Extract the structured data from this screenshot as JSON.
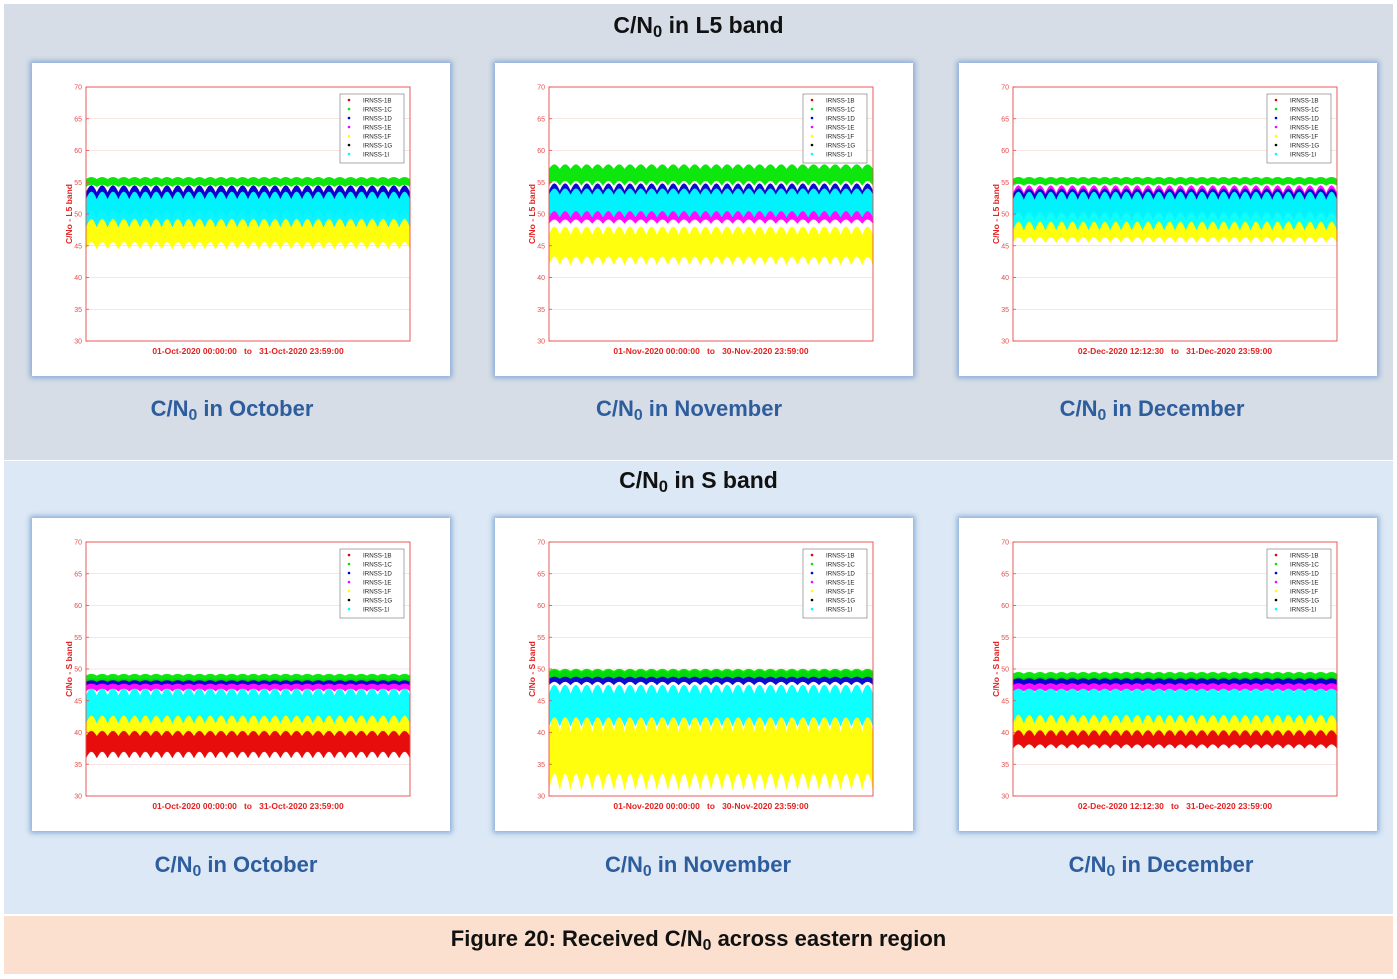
{
  "sections": [
    {
      "title": "C/N",
      "title_sub": "0",
      "title_suffix": " in L5 band"
    },
    {
      "title": "C/N",
      "title_sub": "0",
      "title_suffix": " in S band"
    }
  ],
  "figure_caption": {
    "prefix": "Figure 20: Received C/N",
    "sub": "0",
    "suffix": " across eastern region"
  },
  "panels": [
    {
      "caption_prefix": "C/N",
      "caption_sub": "0",
      "caption_suffix": " in October",
      "xlabel": "01-Oct-2020 00:00:00   to   31-Oct-2020 23:59:00"
    },
    {
      "caption_prefix": "C/N",
      "caption_sub": "0",
      "caption_suffix": " in November",
      "xlabel": "01-Nov-2020 00:00:00   to   30-Nov-2020 23:59:00"
    },
    {
      "caption_prefix": "C/N",
      "caption_sub": "0",
      "caption_suffix": " in December",
      "xlabel": "02-Dec-2020 12:12:30   to   31-Dec-2020 23:59:00"
    },
    {
      "caption_prefix": "C/N",
      "caption_sub": "0",
      "caption_suffix": " in October",
      "xlabel": "01-Oct-2020 00:00:00   to   31-Oct-2020 23:59:00"
    },
    {
      "caption_prefix": "C/N",
      "caption_sub": "0",
      "caption_suffix": " in November",
      "xlabel": "01-Nov-2020 00:00:00   to   30-Nov-2020 23:59:00"
    },
    {
      "caption_prefix": "C/N",
      "caption_sub": "0",
      "caption_suffix": " in December",
      "xlabel": "02-Dec-2020 12:12:30   to   31-Dec-2020 23:59:00"
    }
  ],
  "colors": {
    "IRNSS-1B": "#e60000",
    "IRNSS-1C": "#00e600",
    "IRNSS-1D": "#0000cc",
    "IRNSS-1E": "#ff00ff",
    "IRNSS-1F": "#ffff00",
    "IRNSS-1G": "#000000",
    "IRNSS-1I": "#00ffff",
    "axis": "#e84a4a",
    "label": "#e62020"
  },
  "chart_data": [
    {
      "type": "scatter",
      "band": "L5",
      "ylabel": "C/No - L5 band",
      "ylim": [
        30,
        70
      ],
      "yticks": [
        30,
        35,
        40,
        45,
        50,
        55,
        60,
        65,
        70
      ],
      "legend": [
        "IRNSS-1B",
        "IRNSS-1C",
        "IRNSS-1D",
        "IRNSS-1E",
        "IRNSS-1F",
        "IRNSS-1G",
        "IRNSS-1I"
      ],
      "legend_position": "top-right",
      "grid": true,
      "series": [
        {
          "name": "IRNSS-1F",
          "min": 44.5,
          "max": 49.5
        },
        {
          "name": "IRNSS-1E",
          "min": 48,
          "max": 54.5
        },
        {
          "name": "IRNSS-1D",
          "min": 49.5,
          "max": 54.5
        },
        {
          "name": "IRNSS-1I",
          "min": 48,
          "max": 53.5
        },
        {
          "name": "IRNSS-1C",
          "min": 54.3,
          "max": 55.8
        }
      ]
    },
    {
      "type": "scatter",
      "band": "L5",
      "ylabel": "C/No - L5 band",
      "ylim": [
        30,
        70
      ],
      "yticks": [
        30,
        35,
        40,
        45,
        50,
        55,
        60,
        65,
        70
      ],
      "legend": [
        "IRNSS-1B",
        "IRNSS-1C",
        "IRNSS-1D",
        "IRNSS-1E",
        "IRNSS-1F",
        "IRNSS-1G",
        "IRNSS-1I"
      ],
      "legend_position": "top-right",
      "grid": true,
      "series": [
        {
          "name": "IRNSS-1F",
          "min": 42,
          "max": 48
        },
        {
          "name": "IRNSS-1E",
          "min": 48.5,
          "max": 51.5
        },
        {
          "name": "IRNSS-1D",
          "min": 49.5,
          "max": 54.8
        },
        {
          "name": "IRNSS-1I",
          "min": 49.5,
          "max": 54
        },
        {
          "name": "IRNSS-1C",
          "min": 54.5,
          "max": 57.8
        }
      ]
    },
    {
      "type": "scatter",
      "band": "L5",
      "ylabel": "C/No - L5 band",
      "ylim": [
        30,
        70
      ],
      "yticks": [
        30,
        35,
        40,
        45,
        50,
        55,
        60,
        65,
        70
      ],
      "legend": [
        "IRNSS-1B",
        "IRNSS-1C",
        "IRNSS-1D",
        "IRNSS-1E",
        "IRNSS-1F",
        "IRNSS-1G",
        "IRNSS-1I"
      ],
      "legend_position": "top-right",
      "grid": true,
      "series": [
        {
          "name": "IRNSS-1F",
          "min": 45.5,
          "max": 49.5
        },
        {
          "name": "IRNSS-1E",
          "min": 49,
          "max": 54.5
        },
        {
          "name": "IRNSS-1D",
          "min": 49.5,
          "max": 54
        },
        {
          "name": "IRNSS-1I",
          "min": 47.5,
          "max": 53.5
        },
        {
          "name": "IRNSS-1C",
          "min": 54.5,
          "max": 55.8
        }
      ]
    },
    {
      "type": "scatter",
      "band": "S",
      "ylabel": "C/No - S band",
      "ylim": [
        30,
        70
      ],
      "yticks": [
        30,
        35,
        40,
        45,
        50,
        55,
        60,
        65,
        70
      ],
      "legend": [
        "IRNSS-1B",
        "IRNSS-1C",
        "IRNSS-1D",
        "IRNSS-1E",
        "IRNSS-1F",
        "IRNSS-1G",
        "IRNSS-1I"
      ],
      "legend_position": "top-right",
      "grid": true,
      "series": [
        {
          "name": "IRNSS-1B",
          "min": 36,
          "max": 40.5
        },
        {
          "name": "IRNSS-1F",
          "min": 39.5,
          "max": 43
        },
        {
          "name": "IRNSS-1I",
          "min": 41.5,
          "max": 47
        },
        {
          "name": "IRNSS-1E",
          "min": 46.5,
          "max": 48.5
        },
        {
          "name": "IRNSS-1D",
          "min": 47.5,
          "max": 48.5
        },
        {
          "name": "IRNSS-1C",
          "min": 48,
          "max": 49.2
        }
      ]
    },
    {
      "type": "scatter",
      "band": "S",
      "ylabel": "C/No - S band",
      "ylim": [
        30,
        70
      ],
      "yticks": [
        30,
        35,
        40,
        45,
        50,
        55,
        60,
        65,
        70
      ],
      "legend": [
        "IRNSS-1B",
        "IRNSS-1C",
        "IRNSS-1D",
        "IRNSS-1E",
        "IRNSS-1F",
        "IRNSS-1G",
        "IRNSS-1I"
      ],
      "legend_position": "top-right",
      "grid": true,
      "series": [
        {
          "name": "IRNSS-1F",
          "min": 31,
          "max": 42.5
        },
        {
          "name": "IRNSS-1I",
          "min": 41,
          "max": 47.5
        },
        {
          "name": "IRNSS-1D",
          "min": 47.5,
          "max": 49.8
        },
        {
          "name": "IRNSS-1C",
          "min": 48.5,
          "max": 50
        }
      ]
    },
    {
      "type": "scatter",
      "band": "S",
      "ylabel": "C/No - S band",
      "ylim": [
        30,
        70
      ],
      "yticks": [
        30,
        35,
        40,
        45,
        50,
        55,
        60,
        65,
        70
      ],
      "legend": [
        "IRNSS-1B",
        "IRNSS-1C",
        "IRNSS-1D",
        "IRNSS-1E",
        "IRNSS-1F",
        "IRNSS-1G",
        "IRNSS-1I"
      ],
      "legend_position": "top-right",
      "grid": true,
      "series": [
        {
          "name": "IRNSS-1B",
          "min": 37.5,
          "max": 40.5
        },
        {
          "name": "IRNSS-1F",
          "min": 39.5,
          "max": 43.5
        },
        {
          "name": "IRNSS-1I",
          "min": 41.5,
          "max": 47.5
        },
        {
          "name": "IRNSS-1E",
          "min": 46.5,
          "max": 48.5
        },
        {
          "name": "IRNSS-1D",
          "min": 47.5,
          "max": 48.8
        },
        {
          "name": "IRNSS-1C",
          "min": 48.3,
          "max": 49.5
        }
      ]
    }
  ]
}
